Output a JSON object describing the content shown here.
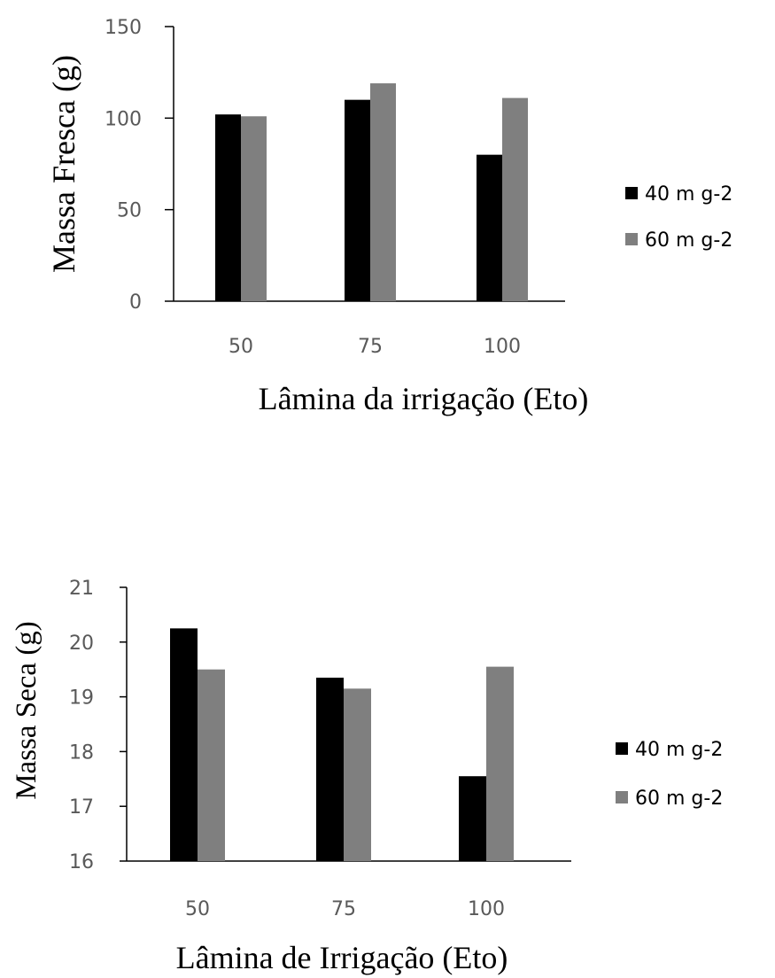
{
  "chart_data": [
    {
      "type": "bar",
      "title": "",
      "xlabel": "Lâmina da irrigação (Eto)",
      "ylabel": "Massa Fresca (g)",
      "categories": [
        "50",
        "75",
        "100"
      ],
      "ylim": [
        0,
        150
      ],
      "yticks": [
        "0",
        "50",
        "100",
        "150"
      ],
      "grid": false,
      "legend_position": "right",
      "series": [
        {
          "name": "40 m g-2",
          "color": "#000000",
          "values": [
            102,
            110,
            80
          ]
        },
        {
          "name": "60 m g-2",
          "color": "#7f7f7f",
          "values": [
            101,
            119,
            111
          ]
        }
      ]
    },
    {
      "type": "bar",
      "title": "",
      "xlabel": "Lâmina de Irrigação (Eto)",
      "ylabel": "Massa Seca (g)",
      "categories": [
        "50",
        "75",
        "100"
      ],
      "ylim": [
        16,
        21
      ],
      "yticks": [
        "16",
        "17",
        "18",
        "19",
        "20",
        "21"
      ],
      "grid": false,
      "legend_position": "right",
      "series": [
        {
          "name": "40 m g-2",
          "color": "#000000",
          "values": [
            20.25,
            19.35,
            17.55
          ]
        },
        {
          "name": "60 m g-2",
          "color": "#7f7f7f",
          "values": [
            19.5,
            19.15,
            19.55
          ]
        }
      ]
    }
  ]
}
